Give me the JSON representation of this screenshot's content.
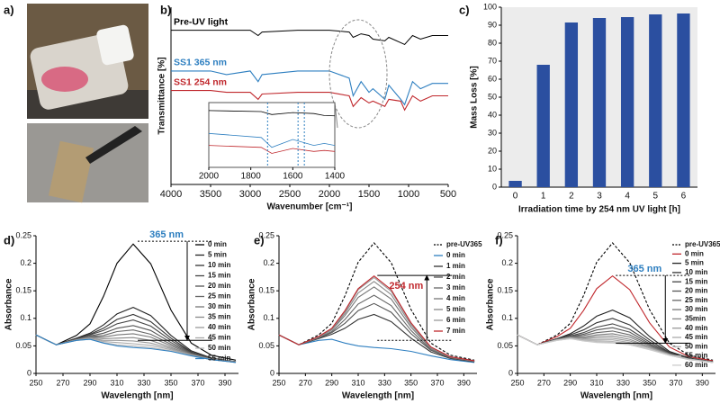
{
  "panel_a": {
    "label": "a)"
  },
  "chart_data": [
    {
      "type": "line",
      "label": "b)",
      "xlabel": "Wavenumber [cm⁻¹]",
      "ylabel": "Transmittance [%]",
      "x": [
        4000,
        3500,
        3300,
        3000,
        2900,
        2850,
        2400,
        2000,
        1750,
        1700,
        1600,
        1500,
        1450,
        1300,
        1250,
        1100,
        1050,
        950,
        850,
        700,
        500
      ],
      "xlim": [
        4000,
        500
      ],
      "xticks": [
        4000,
        3500,
        3000,
        2500,
        2000,
        1500,
        1000,
        500
      ],
      "ylim": [
        0,
        100
      ],
      "series": [
        {
          "name": "Pre-UV light",
          "color": "#000000",
          "values": [
            87,
            87,
            87,
            87,
            84,
            86,
            87,
            87,
            86,
            83,
            85,
            84,
            82,
            81,
            83,
            80,
            79,
            84,
            82,
            84,
            84
          ]
        },
        {
          "name": "SS1 365 nm",
          "color": "#2e7fc0",
          "values": [
            64,
            64,
            62,
            64,
            58,
            62,
            64,
            64,
            60,
            50,
            58,
            52,
            54,
            48,
            56,
            48,
            45,
            58,
            54,
            57,
            57
          ]
        },
        {
          "name": "SS1 254 nm",
          "color": "#c0282d",
          "values": [
            53,
            53,
            52,
            52,
            48,
            51,
            52,
            52,
            50,
            44,
            49,
            46,
            47,
            44,
            48,
            47,
            42,
            50,
            47,
            50,
            50
          ]
        }
      ],
      "inset": {
        "xlim": [
          2000,
          1400
        ],
        "xticks": [
          2000,
          1800,
          1600,
          1400
        ],
        "markers": [
          1720,
          1575,
          1545
        ]
      }
    },
    {
      "type": "bar",
      "label": "c)",
      "xlabel": "Irradiation time by 254 nm UV light [h]",
      "ylabel": "Mass Loss [%]",
      "categories": [
        "0",
        "1",
        "2",
        "3",
        "4",
        "5",
        "6"
      ],
      "values": [
        3.5,
        68,
        91.5,
        94,
        94.5,
        96,
        96.5
      ],
      "color": "#2b4fa0",
      "ylim": [
        0,
        100
      ],
      "yticks": [
        0,
        10,
        20,
        30,
        40,
        50,
        60,
        70,
        80,
        90,
        100
      ]
    },
    {
      "type": "line",
      "label": "d)",
      "xlabel": "Wavelength [nm]",
      "ylabel": "Absorbance",
      "x": [
        250,
        265,
        280,
        290,
        300,
        310,
        322,
        335,
        350,
        365,
        380,
        398
      ],
      "xlim": [
        250,
        400
      ],
      "xticks": [
        250,
        270,
        290,
        310,
        330,
        350,
        370,
        390
      ],
      "ylim": [
        0,
        0.25
      ],
      "yticks": [
        0,
        0.05,
        0.1,
        0.15,
        0.2,
        0.25
      ],
      "annotation": {
        "text": "365 nm",
        "color": "#2e7fc0",
        "x": 362,
        "y_from": 0.24,
        "y_to": 0.06
      },
      "series": [
        {
          "name": "0 min",
          "color": "#000000",
          "values": [
            0.07,
            0.052,
            0.069,
            0.09,
            0.14,
            0.2,
            0.235,
            0.199,
            0.115,
            0.055,
            0.033,
            0.024
          ]
        },
        {
          "name": "5 min",
          "color": "#222222",
          "values": [
            0.07,
            0.052,
            0.064,
            0.073,
            0.088,
            0.108,
            0.12,
            0.105,
            0.069,
            0.041,
            0.028,
            0.021
          ]
        },
        {
          "name": "10 min",
          "color": "#333333",
          "values": [
            0.07,
            0.052,
            0.063,
            0.071,
            0.082,
            0.098,
            0.107,
            0.094,
            0.064,
            0.039,
            0.027,
            0.021
          ]
        },
        {
          "name": "15 min",
          "color": "#444444",
          "values": [
            0.07,
            0.052,
            0.063,
            0.07,
            0.078,
            0.09,
            0.097,
            0.086,
            0.06,
            0.038,
            0.027,
            0.021
          ]
        },
        {
          "name": "20 min",
          "color": "#555555",
          "values": [
            0.07,
            0.052,
            0.062,
            0.068,
            0.073,
            0.082,
            0.087,
            0.078,
            0.056,
            0.037,
            0.027,
            0.021
          ]
        },
        {
          "name": "25 min",
          "color": "#666666",
          "values": [
            0.07,
            0.052,
            0.062,
            0.067,
            0.069,
            0.076,
            0.079,
            0.071,
            0.053,
            0.036,
            0.026,
            0.021
          ]
        },
        {
          "name": "30 min",
          "color": "#777777",
          "values": [
            0.07,
            0.052,
            0.061,
            0.066,
            0.066,
            0.07,
            0.072,
            0.066,
            0.05,
            0.035,
            0.026,
            0.021
          ]
        },
        {
          "name": "35 min",
          "color": "#888888",
          "values": [
            0.07,
            0.052,
            0.061,
            0.065,
            0.063,
            0.064,
            0.065,
            0.06,
            0.047,
            0.034,
            0.026,
            0.02
          ]
        },
        {
          "name": "40 min",
          "color": "#999999",
          "values": [
            0.07,
            0.052,
            0.061,
            0.064,
            0.06,
            0.06,
            0.059,
            0.055,
            0.045,
            0.033,
            0.025,
            0.02
          ]
        },
        {
          "name": "45 min",
          "color": "#aaaaaa",
          "values": [
            0.07,
            0.052,
            0.06,
            0.063,
            0.058,
            0.056,
            0.054,
            0.051,
            0.043,
            0.033,
            0.025,
            0.02
          ]
        },
        {
          "name": "50 min",
          "color": "#bbbbbb",
          "values": [
            0.07,
            0.052,
            0.06,
            0.062,
            0.056,
            0.052,
            0.05,
            0.047,
            0.041,
            0.032,
            0.025,
            0.02
          ]
        },
        {
          "name": "55 min",
          "color": "#2e7fc0",
          "values": [
            0.07,
            0.052,
            0.06,
            0.062,
            0.055,
            0.05,
            0.047,
            0.045,
            0.04,
            0.032,
            0.025,
            0.02
          ]
        }
      ]
    },
    {
      "type": "line",
      "label": "e)",
      "xlabel": "Wavelength [nm]",
      "ylabel": "Absorbance",
      "x": [
        250,
        265,
        280,
        290,
        300,
        310,
        322,
        335,
        350,
        365,
        380,
        398
      ],
      "xlim": [
        250,
        400
      ],
      "xticks": [
        250,
        270,
        290,
        310,
        330,
        350,
        370,
        390
      ],
      "ylim": [
        0,
        0.25
      ],
      "yticks": [
        0,
        0.05,
        0.1,
        0.15,
        0.2,
        0.25
      ],
      "annotation": {
        "text": "254 nm",
        "color": "#c0282d",
        "x": 362,
        "y_from": 0.06,
        "y_to": 0.178
      },
      "series": [
        {
          "name": "pre-UV365",
          "color": "#000000",
          "dashed": true,
          "values": [
            0.07,
            0.052,
            0.07,
            0.091,
            0.141,
            0.202,
            0.237,
            0.201,
            0.116,
            0.055,
            0.033,
            0.024
          ]
        },
        {
          "name": "0 min",
          "color": "#2e7fc0",
          "values": [
            0.07,
            0.052,
            0.06,
            0.062,
            0.055,
            0.05,
            0.047,
            0.045,
            0.04,
            0.032,
            0.025,
            0.02
          ]
        },
        {
          "name": "1 min",
          "color": "#333333",
          "values": [
            0.07,
            0.052,
            0.063,
            0.071,
            0.082,
            0.098,
            0.107,
            0.094,
            0.064,
            0.039,
            0.027,
            0.021
          ]
        },
        {
          "name": "2 min",
          "color": "#555555",
          "values": [
            0.07,
            0.052,
            0.064,
            0.074,
            0.091,
            0.114,
            0.127,
            0.111,
            0.072,
            0.042,
            0.028,
            0.022
          ]
        },
        {
          "name": "3 min",
          "color": "#666666",
          "values": [
            0.07,
            0.052,
            0.065,
            0.076,
            0.098,
            0.126,
            0.142,
            0.123,
            0.078,
            0.043,
            0.029,
            0.022
          ]
        },
        {
          "name": "4 min",
          "color": "#777777",
          "values": [
            0.07,
            0.052,
            0.066,
            0.079,
            0.105,
            0.138,
            0.157,
            0.135,
            0.084,
            0.045,
            0.029,
            0.022
          ]
        },
        {
          "name": "5 min",
          "color": "#888888",
          "values": [
            0.07,
            0.052,
            0.066,
            0.08,
            0.109,
            0.146,
            0.167,
            0.143,
            0.088,
            0.046,
            0.03,
            0.022
          ]
        },
        {
          "name": "6 min",
          "color": "#999999",
          "values": [
            0.07,
            0.052,
            0.066,
            0.081,
            0.112,
            0.152,
            0.174,
            0.149,
            0.091,
            0.047,
            0.03,
            0.023
          ]
        },
        {
          "name": "7 min",
          "color": "#c0282d",
          "values": [
            0.07,
            0.052,
            0.067,
            0.082,
            0.114,
            0.154,
            0.177,
            0.152,
            0.092,
            0.048,
            0.03,
            0.023
          ]
        }
      ]
    },
    {
      "type": "line",
      "label": "f)",
      "xlabel": "Wavelength [nm]",
      "ylabel": "Absorbance",
      "x": [
        250,
        265,
        280,
        290,
        300,
        310,
        322,
        335,
        350,
        365,
        380,
        398
      ],
      "xlim": [
        250,
        400
      ],
      "xticks": [
        250,
        270,
        290,
        310,
        330,
        350,
        370,
        390
      ],
      "ylim": [
        0,
        0.25
      ],
      "yticks": [
        0,
        0.05,
        0.1,
        0.15,
        0.2,
        0.25
      ],
      "annotation": {
        "text": "365 nm",
        "color": "#2e7fc0",
        "x": 362,
        "y_from": 0.178,
        "y_to": 0.055
      },
      "series": [
        {
          "name": "pre-UV365",
          "color": "#000000",
          "dashed": true,
          "values": [
            0.07,
            0.052,
            0.07,
            0.091,
            0.141,
            0.202,
            0.237,
            0.201,
            0.116,
            0.055,
            0.033,
            0.024
          ]
        },
        {
          "name": "0 min",
          "color": "#c0282d",
          "values": [
            0.07,
            0.052,
            0.067,
            0.082,
            0.114,
            0.154,
            0.177,
            0.152,
            0.092,
            0.048,
            0.03,
            0.023
          ]
        },
        {
          "name": "5 min",
          "color": "#222222",
          "values": [
            0.07,
            0.052,
            0.063,
            0.072,
            0.086,
            0.104,
            0.115,
            0.101,
            0.067,
            0.04,
            0.028,
            0.021
          ]
        },
        {
          "name": "10 min",
          "color": "#333333",
          "values": [
            0.07,
            0.052,
            0.063,
            0.07,
            0.079,
            0.092,
            0.1,
            0.088,
            0.061,
            0.038,
            0.027,
            0.021
          ]
        },
        {
          "name": "15 min",
          "color": "#444444",
          "values": [
            0.07,
            0.052,
            0.062,
            0.068,
            0.074,
            0.084,
            0.09,
            0.08,
            0.057,
            0.037,
            0.027,
            0.021
          ]
        },
        {
          "name": "20 min",
          "color": "#555555",
          "values": [
            0.07,
            0.052,
            0.062,
            0.067,
            0.071,
            0.079,
            0.083,
            0.075,
            0.054,
            0.036,
            0.026,
            0.021
          ]
        },
        {
          "name": "25 min",
          "color": "#666666",
          "values": [
            0.07,
            0.052,
            0.062,
            0.067,
            0.069,
            0.074,
            0.077,
            0.07,
            0.052,
            0.036,
            0.026,
            0.021
          ]
        },
        {
          "name": "30 min",
          "color": "#777777",
          "values": [
            0.07,
            0.052,
            0.061,
            0.066,
            0.066,
            0.07,
            0.072,
            0.066,
            0.05,
            0.035,
            0.026,
            0.021
          ]
        },
        {
          "name": "35min",
          "color": "#888888",
          "values": [
            0.07,
            0.052,
            0.061,
            0.065,
            0.064,
            0.067,
            0.068,
            0.062,
            0.048,
            0.035,
            0.026,
            0.02
          ]
        },
        {
          "name": "40 min",
          "color": "#999999",
          "values": [
            0.07,
            0.052,
            0.061,
            0.065,
            0.063,
            0.064,
            0.064,
            0.059,
            0.047,
            0.034,
            0.026,
            0.02
          ]
        },
        {
          "name": "45 min",
          "color": "#aaaaaa",
          "values": [
            0.07,
            0.052,
            0.061,
            0.064,
            0.061,
            0.061,
            0.061,
            0.056,
            0.046,
            0.034,
            0.026,
            0.02
          ]
        },
        {
          "name": "50 min",
          "color": "#b4b4b4",
          "values": [
            0.07,
            0.052,
            0.061,
            0.064,
            0.06,
            0.059,
            0.058,
            0.054,
            0.044,
            0.033,
            0.025,
            0.02
          ]
        },
        {
          "name": "55 min",
          "color": "#c0c0c0",
          "values": [
            0.07,
            0.052,
            0.06,
            0.063,
            0.059,
            0.057,
            0.056,
            0.052,
            0.044,
            0.033,
            0.025,
            0.02
          ]
        },
        {
          "name": "60 min",
          "color": "#cccccc",
          "values": [
            0.07,
            0.052,
            0.06,
            0.063,
            0.059,
            0.056,
            0.055,
            0.052,
            0.043,
            0.033,
            0.025,
            0.02
          ]
        }
      ]
    }
  ]
}
